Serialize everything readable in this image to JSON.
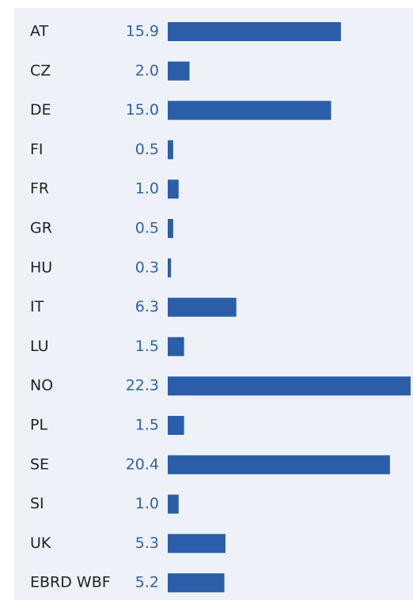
{
  "chart_data": {
    "type": "bar",
    "orientation": "horizontal",
    "categories": [
      "AT",
      "CZ",
      "DE",
      "FI",
      "FR",
      "GR",
      "HU",
      "IT",
      "LU",
      "NO",
      "PL",
      "SE",
      "SI",
      "UK",
      "EBRD WBF"
    ],
    "values": [
      15.9,
      2.0,
      15.0,
      0.5,
      1.0,
      0.5,
      0.3,
      6.3,
      1.5,
      22.3,
      1.5,
      20.4,
      1.0,
      5.3,
      5.2
    ],
    "value_labels": [
      "15.9",
      "2.0",
      "15.0",
      "0.5",
      "1.0",
      "0.5",
      "0.3",
      "6.3",
      "1.5",
      "22.3",
      "1.5",
      "20.4",
      "1.0",
      "5.3",
      "5.2"
    ],
    "color": "#2a5ea8"
  }
}
